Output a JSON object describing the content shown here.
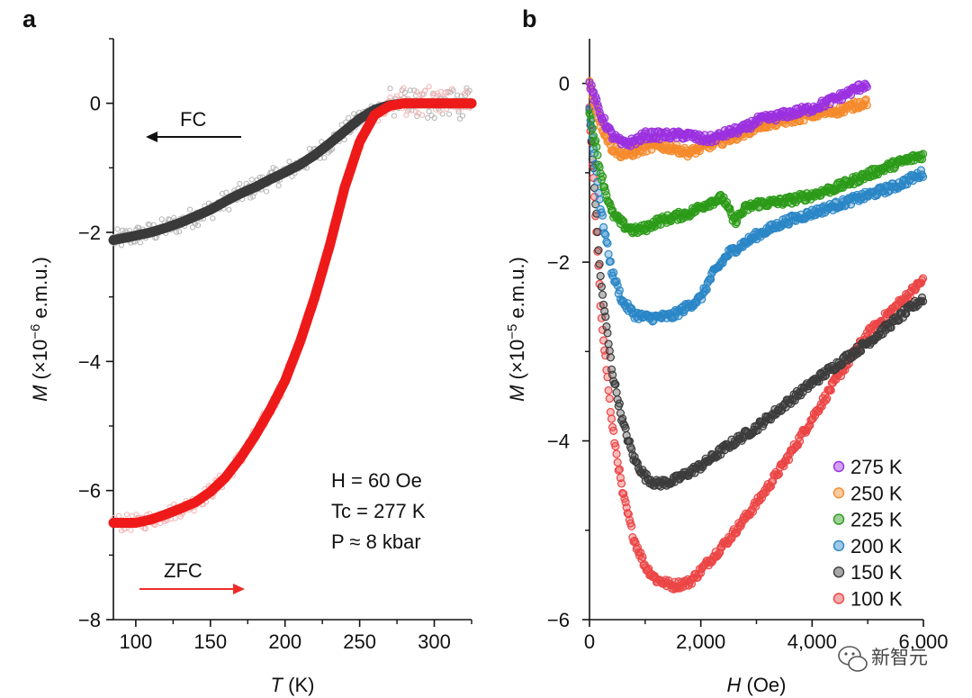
{
  "chart_data": [
    {
      "panel": "a",
      "type": "scatter",
      "xlabel": "T (K)",
      "ylabel": "M (×10⁻⁶ e.m.u.)",
      "xlim": [
        85,
        325
      ],
      "ylim": [
        -8,
        1
      ],
      "xticks": [
        100,
        150,
        200,
        250,
        300
      ],
      "yticks": [
        0,
        -2,
        -4,
        -6,
        -8
      ],
      "annotations": {
        "field": "H = 60 Oe",
        "tc": "Tc = 277 K",
        "pressure": "P ≈ 8 kbar",
        "fc": "FC",
        "zfc": "ZFC"
      },
      "series": [
        {
          "name": "FC",
          "color": "#3a3a3a",
          "raw_color": "#b5b5b5",
          "x": [
            85,
            100,
            110,
            120,
            130,
            140,
            150,
            160,
            170,
            180,
            190,
            200,
            210,
            220,
            230,
            240,
            250,
            260,
            270,
            280,
            290,
            300,
            310,
            325
          ],
          "y": [
            -2.12,
            -2.05,
            -2.0,
            -1.93,
            -1.85,
            -1.75,
            -1.65,
            -1.52,
            -1.4,
            -1.3,
            -1.18,
            -1.07,
            -0.95,
            -0.8,
            -0.62,
            -0.43,
            -0.24,
            -0.1,
            -0.03,
            0.0,
            0.0,
            0.0,
            0.0,
            0.0
          ]
        },
        {
          "name": "ZFC",
          "color": "#ee1a1a",
          "raw_color": "#f4b3b3",
          "x": [
            85,
            100,
            110,
            120,
            130,
            140,
            150,
            160,
            170,
            180,
            190,
            200,
            210,
            220,
            230,
            240,
            250,
            260,
            270,
            280,
            290,
            300,
            310,
            325
          ],
          "y": [
            -6.5,
            -6.5,
            -6.45,
            -6.37,
            -6.28,
            -6.18,
            -6.02,
            -5.8,
            -5.5,
            -5.15,
            -4.75,
            -4.3,
            -3.7,
            -3.0,
            -2.2,
            -1.3,
            -0.6,
            -0.18,
            -0.04,
            0.0,
            0.0,
            0.0,
            0.0,
            0.0
          ]
        }
      ]
    },
    {
      "panel": "b",
      "type": "scatter",
      "xlabel": "H (Oe)",
      "ylabel": "M (×10⁻⁵ e.m.u.)",
      "xlim": [
        0,
        6000
      ],
      "ylim": [
        -6,
        0.5
      ],
      "xticks": [
        0,
        2000,
        4000,
        6000
      ],
      "xtick_labels": [
        "0",
        "2,000",
        "4,000",
        "6,000"
      ],
      "yticks": [
        0,
        -2,
        -4,
        -6
      ],
      "legend_position": "bottom-right",
      "series": [
        {
          "name": "275 K",
          "color": "#9b30e0",
          "x": [
            0,
            200,
            400,
            600,
            800,
            1000,
            1200,
            1500,
            1800,
            2000,
            2200,
            2500,
            2800,
            3000,
            3500,
            4000,
            4500,
            5000
          ],
          "y": [
            0.0,
            -0.35,
            -0.58,
            -0.68,
            -0.65,
            -0.58,
            -0.58,
            -0.58,
            -0.58,
            -0.62,
            -0.62,
            -0.55,
            -0.5,
            -0.42,
            -0.35,
            -0.28,
            -0.15,
            0.0
          ]
        },
        {
          "name": "250 K",
          "color": "#f58a2c",
          "x": [
            0,
            200,
            400,
            600,
            800,
            1000,
            1200,
            1500,
            1800,
            2000,
            2200,
            2500,
            2800,
            3000,
            3500,
            4000,
            4500,
            5000
          ],
          "y": [
            0.0,
            -0.45,
            -0.72,
            -0.8,
            -0.77,
            -0.72,
            -0.7,
            -0.72,
            -0.78,
            -0.72,
            -0.68,
            -0.62,
            -0.55,
            -0.48,
            -0.42,
            -0.35,
            -0.3,
            -0.2
          ]
        },
        {
          "name": "225 K",
          "color": "#2b9a18",
          "x": [
            0,
            200,
            400,
            600,
            800,
            1000,
            1200,
            1500,
            1800,
            2000,
            2200,
            2400,
            2600,
            2800,
            3000,
            3500,
            4000,
            4500,
            5000,
            5500,
            6000
          ],
          "y": [
            -0.3,
            -1.0,
            -1.45,
            -1.58,
            -1.65,
            -1.62,
            -1.55,
            -1.5,
            -1.45,
            -1.38,
            -1.32,
            -1.28,
            -1.55,
            -1.4,
            -1.35,
            -1.32,
            -1.25,
            -1.15,
            -1.02,
            -0.9,
            -0.8
          ]
        },
        {
          "name": "200 K",
          "color": "#2a86c6",
          "x": [
            0,
            200,
            400,
            600,
            800,
            1000,
            1200,
            1500,
            1800,
            2000,
            2200,
            2500,
            3000,
            3500,
            4000,
            4500,
            5000,
            5500,
            6000
          ],
          "y": [
            -0.3,
            -1.4,
            -2.1,
            -2.45,
            -2.58,
            -2.62,
            -2.62,
            -2.6,
            -2.48,
            -2.4,
            -2.15,
            -1.9,
            -1.7,
            -1.55,
            -1.45,
            -1.35,
            -1.25,
            -1.15,
            -1.0
          ]
        },
        {
          "name": "150 K",
          "color": "#3c3c3c",
          "x": [
            0,
            200,
            400,
            600,
            800,
            1000,
            1200,
            1500,
            1800,
            2000,
            2500,
            3000,
            3500,
            4000,
            4500,
            5000,
            5500,
            6000
          ],
          "y": [
            -0.3,
            -2.2,
            -3.2,
            -3.8,
            -4.2,
            -4.4,
            -4.48,
            -4.45,
            -4.35,
            -4.28,
            -4.05,
            -3.85,
            -3.6,
            -3.35,
            -3.12,
            -2.9,
            -2.65,
            -2.4
          ]
        },
        {
          "name": "100 K",
          "color": "#ec4545",
          "x": [
            0,
            200,
            400,
            600,
            800,
            1000,
            1200,
            1500,
            1800,
            2000,
            2500,
            3000,
            3500,
            4000,
            4500,
            5000,
            5500,
            6000
          ],
          "y": [
            -0.3,
            -2.5,
            -3.8,
            -4.6,
            -5.1,
            -5.4,
            -5.55,
            -5.62,
            -5.58,
            -5.45,
            -5.1,
            -4.7,
            -4.25,
            -3.75,
            -3.25,
            -2.8,
            -2.5,
            -2.2
          ]
        }
      ]
    }
  ],
  "watermark": {
    "text": "新智元",
    "icon": "wechat-icon"
  }
}
